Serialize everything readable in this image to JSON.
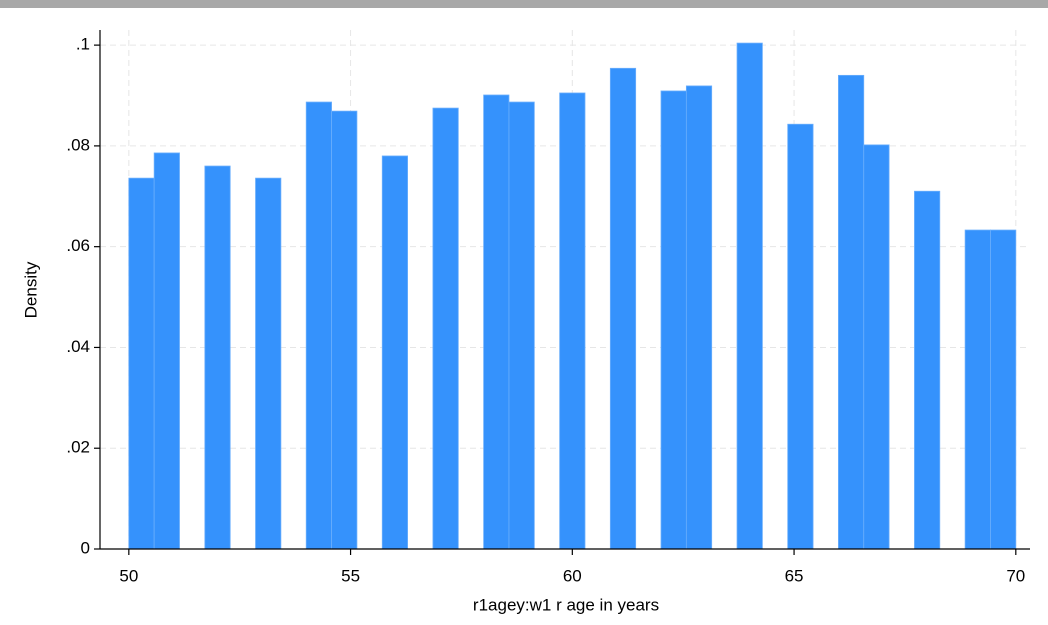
{
  "chart_data": {
    "type": "histogram",
    "x_label": "r1agey:w1 r age in years",
    "y_label": "Density",
    "color": "#3592fc",
    "bins": [
      50,
      50.5714,
      51.1429,
      51.7143,
      52.2857,
      52.8571,
      53.4286,
      54,
      54.5714,
      55.1429,
      55.7143,
      56.2857,
      56.8571,
      57.4286,
      58,
      58.5714,
      59.1429,
      59.7143,
      60.2857,
      60.8571,
      61.4286,
      62,
      62.5714,
      63.1429,
      63.7143,
      64.2857,
      64.8571,
      65.4286,
      66,
      66.5714,
      67.1429,
      67.7143,
      68.2857,
      68.8571,
      69.4286,
      70
    ],
    "values": [
      0.0736,
      0.0786,
      0,
      0.076,
      0,
      0.0736,
      0,
      0.0887,
      0.0869,
      0,
      0.078,
      0,
      0.0875,
      0,
      0.0901,
      0.0887,
      0,
      0.0905,
      0,
      0.0954,
      0,
      0.0909,
      0.0919,
      0,
      0.1004,
      0,
      0.0843,
      0,
      0.094,
      0.0802,
      0,
      0.071,
      0,
      0.0633,
      0.0633
    ],
    "xlim": [
      49.35,
      70.32
    ],
    "ylim": [
      0,
      0.103
    ],
    "xticks": [
      50,
      55,
      60,
      65,
      70
    ],
    "yticks": [
      0,
      {
        "value": 0.02,
        "label": ".02"
      },
      {
        "value": 0.04,
        "label": ".04"
      },
      {
        "value": 0.06,
        "label": ".06"
      },
      {
        "value": 0.08,
        "label": ".08"
      },
      {
        "value": 0.1,
        "label": ".1"
      }
    ],
    "grid": true
  }
}
